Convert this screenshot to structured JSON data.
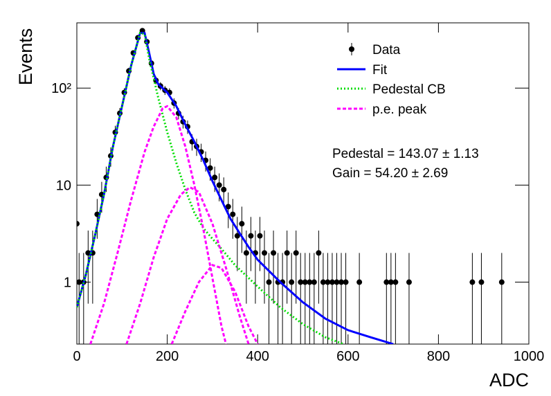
{
  "chart_data": {
    "type": "histogram-fit",
    "x_label": "ADC",
    "y_label": "Events",
    "xlim": [
      0,
      1000
    ],
    "xticks": [
      0,
      200,
      400,
      600,
      800,
      1000
    ],
    "ylim": [
      0.23,
      470
    ],
    "yticks": [
      1,
      10,
      {
        "value": 100,
        "label": "10²"
      }
    ],
    "log_y": true,
    "legend_position": "top-right",
    "series": [
      {
        "name": "Data",
        "kind": "points",
        "color": "#000000",
        "x": [
          0,
          5,
          15,
          25,
          35,
          45,
          55,
          65,
          75,
          85,
          95,
          105,
          115,
          125,
          135,
          145,
          155,
          165,
          175,
          185,
          195,
          205,
          215,
          225,
          235,
          245,
          255,
          265,
          275,
          285,
          295,
          305,
          315,
          325,
          335,
          345,
          355,
          365,
          375,
          385,
          395,
          405,
          415,
          425,
          435,
          445,
          455,
          465,
          475,
          485,
          495,
          505,
          515,
          525,
          535,
          545,
          555,
          565,
          575,
          585,
          595,
          625,
          685,
          695,
          705,
          735,
          875,
          895,
          940
        ],
        "values": [
          4,
          1,
          1,
          2,
          2,
          5,
          8,
          12,
          20,
          35,
          55,
          90,
          150,
          230,
          330,
          390,
          300,
          180,
          120,
          105,
          95,
          90,
          70,
          55,
          45,
          40,
          28,
          25,
          22,
          18,
          15,
          12,
          10,
          9,
          6,
          5,
          3,
          4,
          2,
          3,
          2,
          3,
          2,
          1,
          2,
          1,
          1,
          2,
          1,
          2,
          1,
          1,
          1,
          1,
          2,
          1,
          1,
          1,
          1,
          1,
          1,
          1,
          1,
          1,
          1,
          1,
          1,
          1,
          1
        ],
        "errors": [
          2,
          1,
          1,
          1.4,
          1.4,
          2.2,
          2.8,
          3.5,
          4.5,
          5.9,
          7.4,
          9.5,
          12,
          15,
          18,
          20,
          17,
          13,
          11,
          10,
          10,
          9.5,
          8.4,
          7.4,
          6.7,
          6.3,
          5.3,
          5,
          4.7,
          4.2,
          3.9,
          3.5,
          3.2,
          3,
          2.4,
          2.2,
          1.7,
          2,
          1.4,
          1.7,
          1.4,
          1.7,
          1.4,
          1,
          1.4,
          1,
          1,
          1.4,
          1,
          1.4,
          1,
          1,
          1,
          1,
          1.4,
          1,
          1,
          1,
          1,
          1,
          1,
          1,
          1,
          1,
          1,
          1,
          1,
          1,
          1
        ]
      },
      {
        "name": "Fit",
        "kind": "line",
        "color": "#0000ff",
        "dash": false,
        "pieces": [
          {
            "x": [
              0,
              20,
              40,
              60,
              80,
              100,
              120,
              140,
              150,
              160,
              170,
              180,
              200,
              220,
              240,
              260,
              280,
              300,
              320,
              340,
              360,
              380,
              400,
              450,
              500,
              550,
              600,
              650,
              700
            ],
            "values": [
              0.55,
              1.2,
              3,
              8,
              25,
              65,
              170,
              370,
              370,
              230,
              140,
              110,
              90,
              65,
              42,
              28,
              18,
              11,
              7,
              4.5,
              3.2,
              2.3,
              1.7,
              1,
              0.62,
              0.42,
              0.32,
              0.27,
              0.23
            ]
          }
        ]
      },
      {
        "name": "Pedestal CB",
        "kind": "line",
        "color": "#00dd00",
        "dash": "dot",
        "pieces": [
          {
            "x": [
              0,
              20,
              40,
              60,
              80,
              100,
              120,
              140,
              150,
              160,
              180,
              200,
              220,
              240,
              260,
              280,
              300,
              320,
              350,
              400,
              450,
              500,
              550,
              590
            ],
            "values": [
              0.55,
              1.2,
              3,
              8,
              25,
              65,
              170,
              370,
              360,
              200,
              80,
              35,
              17,
              9,
              5.2,
              3.6,
              2.8,
              2.2,
              1.5,
              0.9,
              0.55,
              0.37,
              0.27,
              0.23
            ]
          }
        ]
      },
      {
        "name": "p.e. peak",
        "kind": "line",
        "color": "#ff00ff",
        "dash": "dash",
        "pieces": [
          {
            "x": [
              30,
              60,
              90,
              120,
              150,
              170,
              190,
              200,
              220,
              240,
              260,
              280,
              300,
              320,
              330
            ],
            "values": [
              0.23,
              0.6,
              2,
              7,
              22,
              40,
              62,
              65,
              50,
              25,
              10,
              3.5,
              1.1,
              0.35,
              0.23
            ]
          },
          {
            "x": [
              110,
              140,
              170,
              200,
              230,
              250,
              270,
              300,
              330,
              360,
              380
            ],
            "values": [
              0.23,
              0.6,
              1.8,
              4.5,
              8,
              9.5,
              8.5,
              4,
              1.4,
              0.45,
              0.23
            ]
          },
          {
            "x": [
              210,
              240,
              270,
              300,
              320,
              350,
              380,
              400
            ],
            "values": [
              0.23,
              0.5,
              1,
              1.5,
              1.4,
              0.8,
              0.35,
              0.23
            ]
          }
        ]
      }
    ],
    "annotations": [
      "Pedestal = 143.07 ± 1.13",
      "Gain = 54.20 ± 2.69"
    ]
  }
}
